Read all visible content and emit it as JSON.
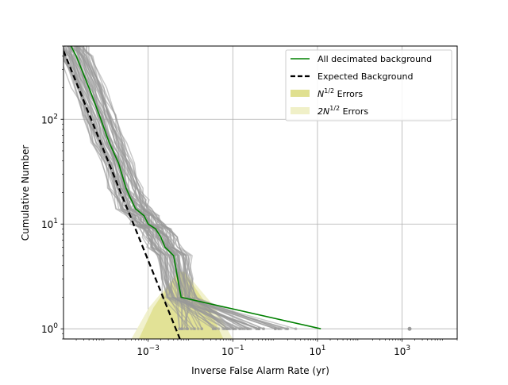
{
  "chart_data": {
    "type": "line",
    "xlabel": "Inverse False Alarm Rate (yr)",
    "ylabel": "Cumulative Number",
    "xscale": "log",
    "yscale": "log",
    "xlim": [
      1e-05,
      20000
    ],
    "ylim": [
      0.8,
      500
    ],
    "grid": true,
    "legend_position": "top-right",
    "x_ticks": [
      {
        "value": 0.001,
        "base": "10",
        "exp": "−3"
      },
      {
        "value": 0.1,
        "base": "10",
        "exp": "−1"
      },
      {
        "value": 10,
        "base": "10",
        "exp": "1"
      },
      {
        "value": 1000,
        "base": "10",
        "exp": "3"
      }
    ],
    "y_ticks": [
      {
        "value": 1,
        "base": "10",
        "exp": "0"
      },
      {
        "value": 10,
        "base": "10",
        "exp": "1"
      },
      {
        "value": 100,
        "base": "10",
        "exp": "2"
      }
    ],
    "legend": [
      {
        "key": "all",
        "label": "All decimated background",
        "style": "line",
        "color": "#008000"
      },
      {
        "key": "expected",
        "label": "Expected Background",
        "style": "dashed",
        "color": "#000000"
      },
      {
        "key": "err1",
        "label_base": "N",
        "label_sup": "1/2",
        "label_suffix": " Errors",
        "style": "patch",
        "color": "#e0e090"
      },
      {
        "key": "err2",
        "label_base": "2N",
        "label_sup": "1/2",
        "label_suffix": " Errors",
        "style": "patch",
        "color": "#f0f0c8"
      }
    ],
    "series": [
      {
        "key": "all",
        "name": "All decimated background",
        "color": "#008000",
        "points": [
          [
            1.5e-05,
            500
          ],
          [
            2e-05,
            400
          ],
          [
            4e-05,
            200
          ],
          [
            7e-05,
            110
          ],
          [
            0.00012,
            60
          ],
          [
            0.0002,
            38
          ],
          [
            0.0003,
            22
          ],
          [
            0.0004,
            17
          ],
          [
            0.0005,
            14
          ],
          [
            0.0008,
            12
          ],
          [
            0.001,
            10
          ],
          [
            0.0015,
            9
          ],
          [
            0.002,
            7.5
          ],
          [
            0.0025,
            6
          ],
          [
            0.004,
            5
          ],
          [
            0.005,
            3
          ],
          [
            0.006,
            2
          ],
          [
            12,
            1
          ]
        ]
      },
      {
        "key": "expected",
        "name": "Expected Background",
        "color": "#000000",
        "points": [
          [
            1e-05,
            450
          ],
          [
            0.01,
            0.45
          ]
        ]
      }
    ],
    "background_trials": {
      "color": "#999999",
      "count": 60,
      "outlier_point": [
        1500,
        1
      ]
    },
    "error_bands": {
      "n_half": {
        "color": "#e0e090",
        "x_range": [
          0.0006,
          0.06
        ]
      },
      "two_n_half": {
        "color": "#f0f0c8",
        "x_range": [
          0.0004,
          0.1
        ]
      }
    }
  }
}
